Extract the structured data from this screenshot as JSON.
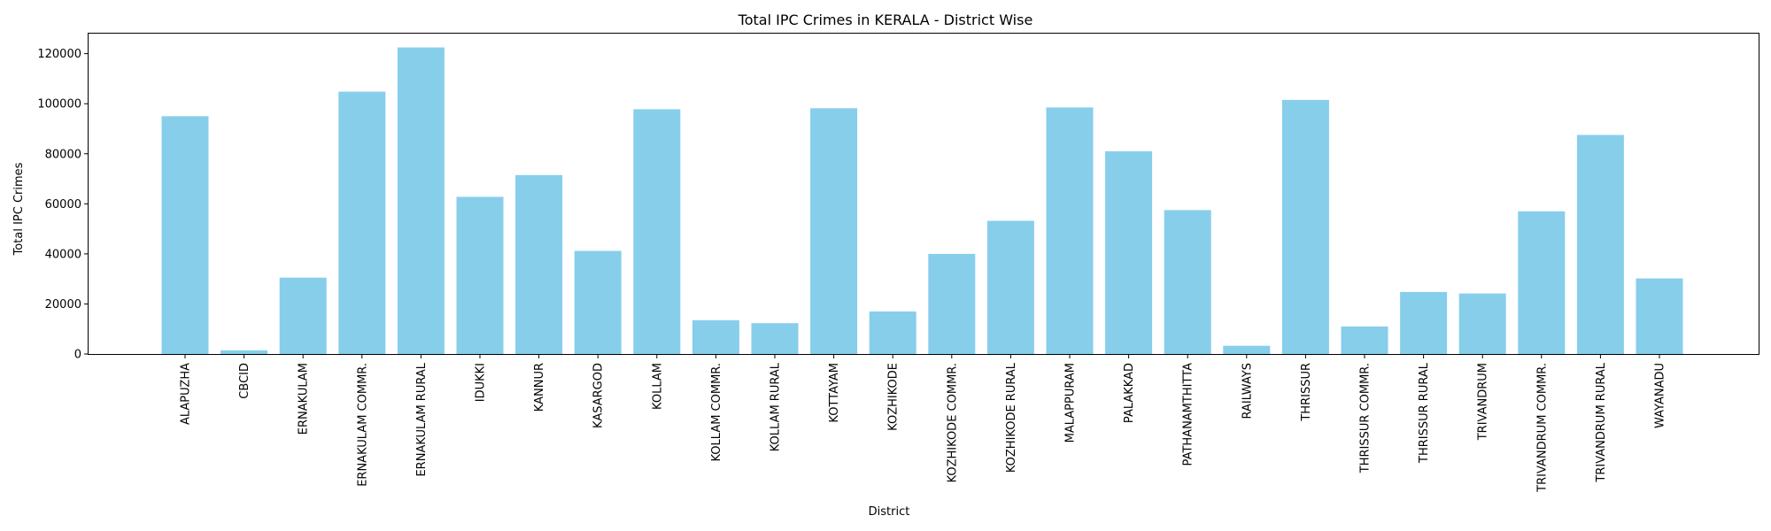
{
  "chart_data": {
    "type": "bar",
    "title": "Total IPC Crimes in KERALA - District Wise",
    "xlabel": "District",
    "ylabel": "Total IPC Crimes",
    "ylim": [
      0,
      128000
    ],
    "yticks": [
      0,
      20000,
      40000,
      60000,
      80000,
      100000,
      120000
    ],
    "grid": false,
    "bar_color": "#87CEEB",
    "categories": [
      "ALAPUZHA",
      "CBCID",
      "ERNAKULAM",
      "ERNAKULAM COMMR.",
      "ERNAKULAM RURAL",
      "IDUKKI",
      "KANNUR",
      "KASARGOD",
      "KOLLAM",
      "KOLLAM COMMR.",
      "KOLLAM RURAL",
      "KOTTAYAM",
      "KOZHIKODE",
      "KOZHIKODE COMMR.",
      "KOZHIKODE RURAL",
      "MALAPPURAM",
      "PALAKKAD",
      "PATHANAMTHITTA",
      "RAILWAYS",
      "THRISSUR",
      "THRISSUR COMMR.",
      "THRISSUR RURAL",
      "TRIVANDRUM",
      "TRIVANDRUM COMMR.",
      "TRIVANDRUM RURAL",
      "WAYANADU"
    ],
    "values": [
      95000,
      1500,
      30500,
      104800,
      122500,
      62800,
      71500,
      41200,
      97800,
      13500,
      12300,
      98200,
      17000,
      40000,
      53200,
      98500,
      81000,
      57500,
      3300,
      101500,
      11000,
      24800,
      24200,
      57000,
      87500,
      30200
    ]
  }
}
